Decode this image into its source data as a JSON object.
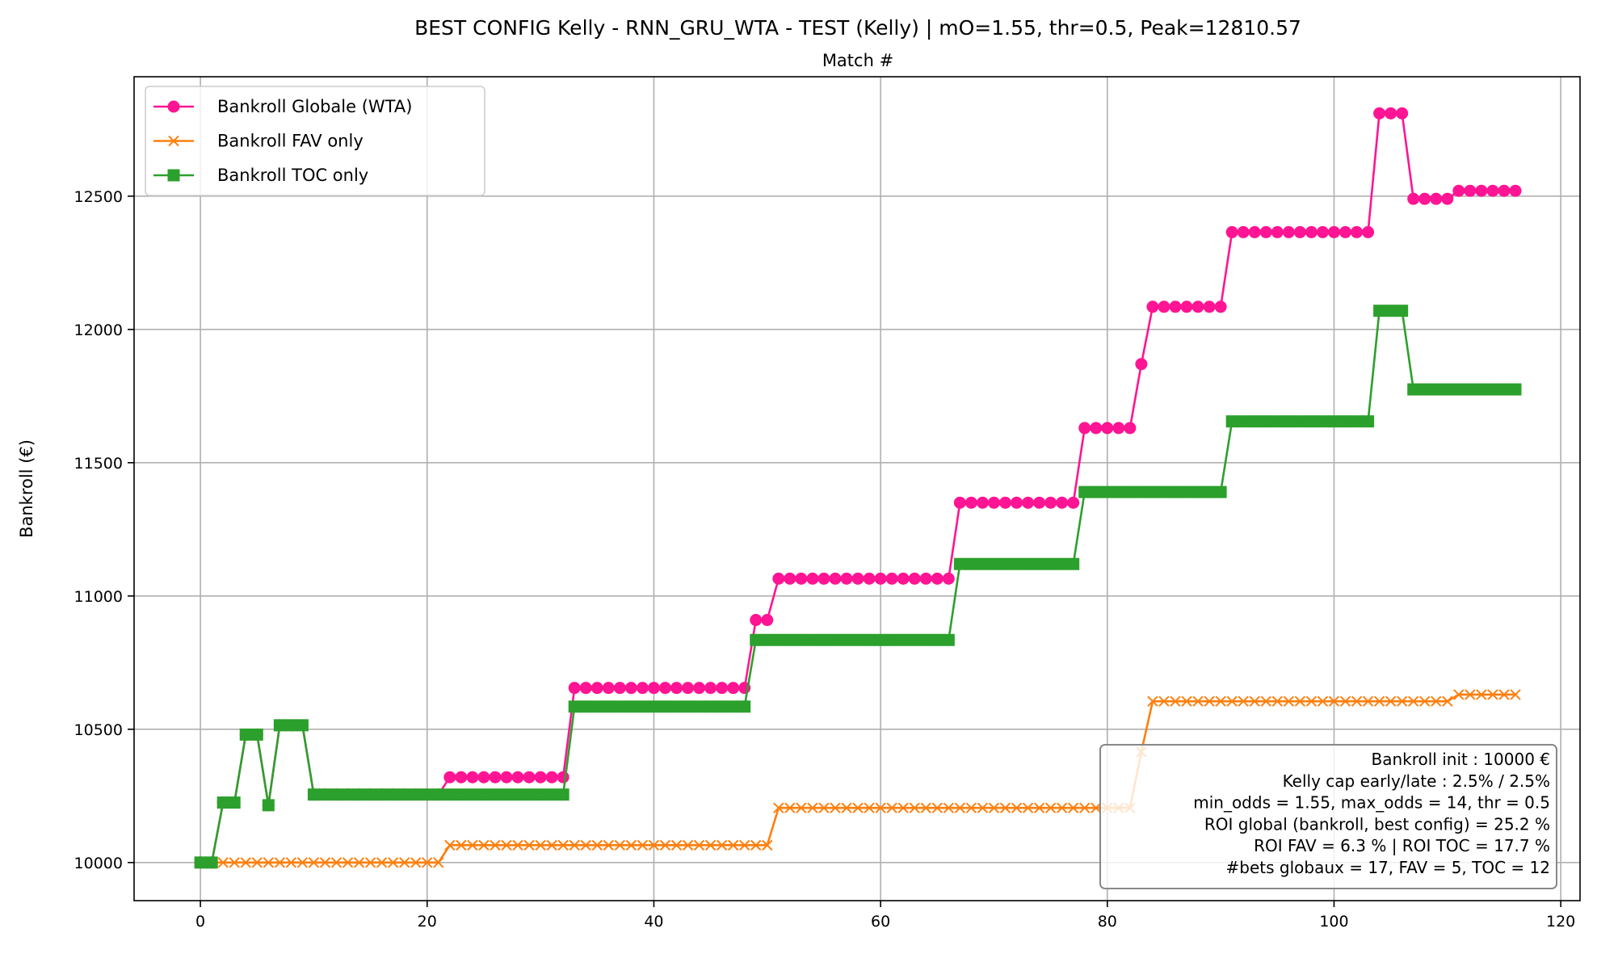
{
  "chart_data": {
    "type": "line",
    "title": "BEST CONFIG Kelly - RNN_GRU_WTA - TEST (Kelly) | mO=1.55, thr=0.5, Peak=12810.57",
    "xlabel": "Match #",
    "ylabel": "Bankroll (€)",
    "xlim": [
      -5.85,
      121.7
    ],
    "ylim": [
      9857,
      12948
    ],
    "xticks": [
      0,
      20,
      40,
      60,
      80,
      100,
      120
    ],
    "yticks": [
      10000,
      10500,
      11000,
      11500,
      12000,
      12500
    ],
    "grid": true,
    "legend_position": "top-left",
    "series": [
      {
        "name": "Bankroll Globale (WTA)",
        "color": "#ff1493",
        "marker": "circle",
        "values": [
          10000,
          10000,
          10225,
          10225,
          10480,
          10480,
          10215,
          10515,
          10515,
          10515,
          10255,
          10255,
          10255,
          10255,
          10255,
          10255,
          10255,
          10255,
          10255,
          10255,
          10255,
          10255,
          10320,
          10320,
          10320,
          10320,
          10320,
          10320,
          10320,
          10320,
          10320,
          10320,
          10320,
          10655,
          10655,
          10655,
          10655,
          10655,
          10655,
          10655,
          10655,
          10655,
          10655,
          10655,
          10655,
          10655,
          10655,
          10655,
          10655,
          10910,
          10910,
          11065,
          11065,
          11065,
          11065,
          11065,
          11065,
          11065,
          11065,
          11065,
          11065,
          11065,
          11065,
          11065,
          11065,
          11065,
          11065,
          11350,
          11350,
          11350,
          11350,
          11350,
          11350,
          11350,
          11350,
          11350,
          11350,
          11350,
          11630,
          11630,
          11630,
          11630,
          11630,
          11870,
          12085,
          12085,
          12085,
          12085,
          12085,
          12085,
          12085,
          12365,
          12365,
          12365,
          12365,
          12365,
          12365,
          12365,
          12365,
          12365,
          12365,
          12365,
          12365,
          12365,
          12810.57,
          12810.57,
          12810.57,
          12490,
          12490,
          12490,
          12490,
          12520,
          12520,
          12520,
          12520,
          12520,
          12520
        ]
      },
      {
        "name": "Bankroll FAV only",
        "color": "#ff7f0e",
        "marker": "x",
        "values": [
          10000,
          10000,
          10000,
          10000,
          10000,
          10000,
          10000,
          10000,
          10000,
          10000,
          10000,
          10000,
          10000,
          10000,
          10000,
          10000,
          10000,
          10000,
          10000,
          10000,
          10000,
          10000,
          10065,
          10065,
          10065,
          10065,
          10065,
          10065,
          10065,
          10065,
          10065,
          10065,
          10065,
          10065,
          10065,
          10065,
          10065,
          10065,
          10065,
          10065,
          10065,
          10065,
          10065,
          10065,
          10065,
          10065,
          10065,
          10065,
          10065,
          10065,
          10065,
          10205,
          10205,
          10205,
          10205,
          10205,
          10205,
          10205,
          10205,
          10205,
          10205,
          10205,
          10205,
          10205,
          10205,
          10205,
          10205,
          10205,
          10205,
          10205,
          10205,
          10205,
          10205,
          10205,
          10205,
          10205,
          10205,
          10205,
          10205,
          10205,
          10205,
          10205,
          10205,
          10415,
          10605,
          10605,
          10605,
          10605,
          10605,
          10605,
          10605,
          10605,
          10605,
          10605,
          10605,
          10605,
          10605,
          10605,
          10605,
          10605,
          10605,
          10605,
          10605,
          10605,
          10605,
          10605,
          10605,
          10605,
          10605,
          10605,
          10605,
          10630,
          10630,
          10630,
          10630,
          10630,
          10630
        ]
      },
      {
        "name": "Bankroll TOC only",
        "color": "#2ca02c",
        "marker": "square",
        "values": [
          10000,
          10000,
          10225,
          10225,
          10480,
          10480,
          10215,
          10515,
          10515,
          10515,
          10255,
          10255,
          10255,
          10255,
          10255,
          10255,
          10255,
          10255,
          10255,
          10255,
          10255,
          10255,
          10255,
          10255,
          10255,
          10255,
          10255,
          10255,
          10255,
          10255,
          10255,
          10255,
          10255,
          10585,
          10585,
          10585,
          10585,
          10585,
          10585,
          10585,
          10585,
          10585,
          10585,
          10585,
          10585,
          10585,
          10585,
          10585,
          10585,
          10835,
          10835,
          10835,
          10835,
          10835,
          10835,
          10835,
          10835,
          10835,
          10835,
          10835,
          10835,
          10835,
          10835,
          10835,
          10835,
          10835,
          10835,
          11120,
          11120,
          11120,
          11120,
          11120,
          11120,
          11120,
          11120,
          11120,
          11120,
          11120,
          11390,
          11390,
          11390,
          11390,
          11390,
          11390,
          11390,
          11390,
          11390,
          11390,
          11390,
          11390,
          11390,
          11655,
          11655,
          11655,
          11655,
          11655,
          11655,
          11655,
          11655,
          11655,
          11655,
          11655,
          11655,
          11655,
          12070,
          12070,
          12070,
          11775,
          11775,
          11775,
          11775,
          11775,
          11775,
          11775,
          11775,
          11775,
          11775
        ]
      }
    ],
    "annotation": [
      "Bankroll init : 10000 €",
      "Kelly cap early/late : 2.5% / 2.5%",
      "min_odds = 1.55, max_odds = 14, thr = 0.5",
      "ROI global (bankroll, best config) = 25.2 %",
      "ROI FAV = 6.3 % | ROI TOC = 17.7 %",
      "#bets globaux = 17, FAV = 5, TOC = 12"
    ]
  }
}
